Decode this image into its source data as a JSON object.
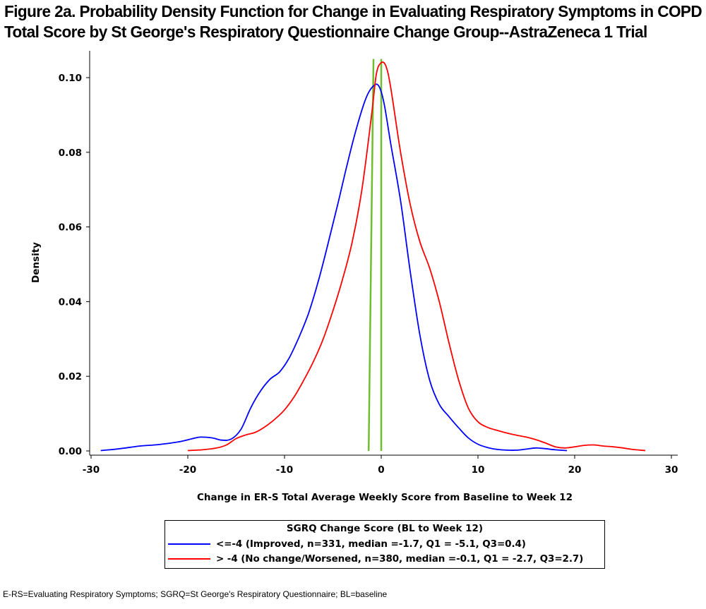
{
  "title_line1": "Figure 2a. Probability Density Function for Change in Evaluating Respiratory Symptoms in COPD",
  "title_line2": "Total Score by St George's Respiratory Questionnaire Change Group--AstraZeneca 1 Trial",
  "footnote": "E-RS=Evaluating Respiratory Symptoms; SGRQ=St George's Respiratory Questionnaire; BL=baseline",
  "chart_data": {
    "type": "line",
    "xlabel": "Change in ER-S Total Average Weekly Score from Baseline to Week 12",
    "ylabel": "Density",
    "xlim": [
      -30,
      30
    ],
    "ylim": [
      0,
      0.105
    ],
    "xticks": [
      -30,
      -20,
      -10,
      0,
      10,
      20,
      30
    ],
    "xtick_labels": [
      "-30",
      "-20",
      "-10",
      "0",
      "10",
      "20",
      "30"
    ],
    "yticks": [
      0,
      0.02,
      0.04,
      0.06,
      0.08,
      0.1
    ],
    "ytick_labels": [
      "0.00",
      "0.02",
      "0.04",
      "0.06",
      "0.08",
      "0.10"
    ],
    "legend_title": "SGRQ Change Score (BL to Week 12)",
    "legend_placement": "bottom-center",
    "series": [
      {
        "name": "<=-4 (Improved, n=331, median =-1.7, Q1 = -5.1, Q3=0.4)",
        "color": "#0000ff",
        "x": [
          -29,
          -27,
          -25,
          -23,
          -21,
          -19.5,
          -18.7,
          -17.5,
          -16.5,
          -15.5,
          -14.5,
          -13.5,
          -12.5,
          -11.5,
          -10.5,
          -9.5,
          -8.5,
          -7.5,
          -6.5,
          -5.5,
          -4.5,
          -3.5,
          -2.5,
          -1.5,
          -0.7,
          -0.2,
          0.3,
          1,
          2,
          3,
          4,
          5,
          6,
          7,
          8,
          9,
          10,
          11,
          12,
          13,
          14,
          15,
          16,
          17,
          18,
          19.2
        ],
        "y": [
          0.0001,
          0.0006,
          0.0013,
          0.0017,
          0.0024,
          0.0033,
          0.0037,
          0.0035,
          0.0029,
          0.0032,
          0.0058,
          0.0115,
          0.016,
          0.0192,
          0.0212,
          0.025,
          0.0305,
          0.037,
          0.0455,
          0.0555,
          0.066,
          0.077,
          0.087,
          0.095,
          0.098,
          0.0975,
          0.093,
          0.082,
          0.067,
          0.048,
          0.031,
          0.019,
          0.0125,
          0.0092,
          0.0062,
          0.0035,
          0.0018,
          0.0009,
          0.0004,
          0.0002,
          0.0002,
          0.0005,
          0.0008,
          0.0006,
          0.0003,
          0.0001
        ]
      },
      {
        "name": "> -4 (No change/Worsened, n=380, median =-0.1, Q1 = -2.7, Q3=2.7)",
        "color": "#ff0000",
        "x": [
          -20,
          -18.5,
          -17,
          -16,
          -15,
          -14,
          -13,
          -12,
          -11,
          -10,
          -9,
          -8,
          -7,
          -6,
          -5,
          -4,
          -3,
          -2,
          -1,
          -0.5,
          0,
          0.5,
          1,
          2,
          3,
          4,
          5,
          6,
          7,
          8,
          9,
          10,
          11,
          12,
          13,
          14,
          15,
          16,
          17,
          18,
          19,
          20,
          21,
          22,
          23,
          24,
          25,
          26,
          27.3
        ],
        "y": [
          0.0001,
          0.0003,
          0.0008,
          0.0016,
          0.0033,
          0.0043,
          0.005,
          0.0065,
          0.0085,
          0.011,
          0.0145,
          0.019,
          0.024,
          0.03,
          0.0375,
          0.046,
          0.056,
          0.07,
          0.09,
          0.101,
          0.104,
          0.103,
          0.097,
          0.08,
          0.066,
          0.056,
          0.049,
          0.04,
          0.029,
          0.019,
          0.0115,
          0.0078,
          0.0063,
          0.0055,
          0.0048,
          0.0042,
          0.0037,
          0.003,
          0.0021,
          0.0011,
          0.0008,
          0.0011,
          0.0015,
          0.0016,
          0.0013,
          0.0011,
          0.0008,
          0.0004,
          0.0001
        ]
      }
    ],
    "reference_lines": {
      "color": "#6fbe2e",
      "lines": [
        {
          "x1": -1.3,
          "y1": 0,
          "x2": -0.8,
          "y2": 0.105
        },
        {
          "x1": 0.0,
          "y1": 0,
          "x2": 0.0,
          "y2": 0.105
        }
      ]
    }
  }
}
